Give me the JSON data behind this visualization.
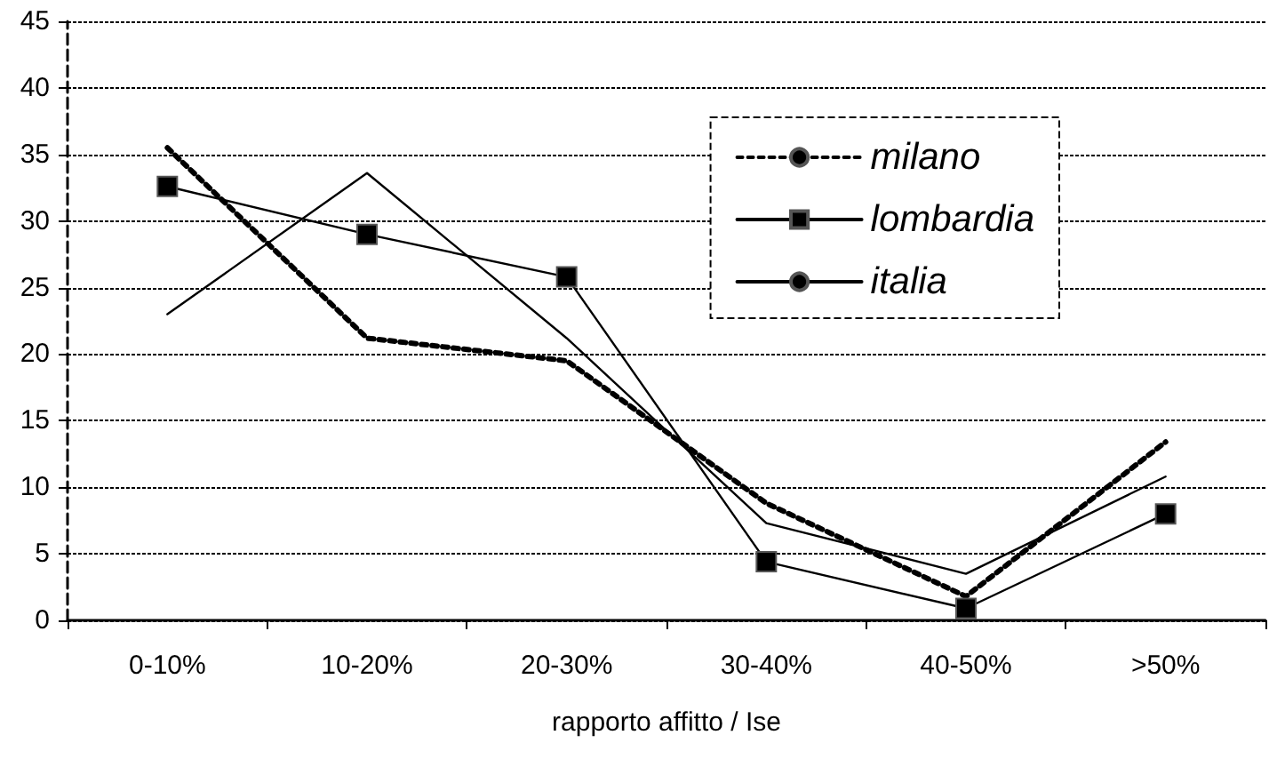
{
  "chart_data": {
    "type": "line",
    "xlabel": "rapporto affitto / Ise",
    "categories": [
      "0-10%",
      "10-20%",
      "20-30%",
      "30-40%",
      "40-50%",
      ">50%"
    ],
    "series": [
      {
        "name": "milano",
        "color": "#000000",
        "line_style": "dashed",
        "marker": "none",
        "values": [
          35.5,
          21.2,
          19.5,
          8.8,
          1.8,
          13.4
        ]
      },
      {
        "name": "lombardia",
        "color": "#000000",
        "line_style": "solid",
        "marker": "square",
        "values": [
          32.6,
          29.0,
          25.8,
          4.4,
          0.9,
          8.0
        ]
      },
      {
        "name": "italia",
        "color": "#000000",
        "line_style": "solid",
        "marker": "none",
        "values": [
          23.0,
          33.6,
          21.2,
          7.3,
          3.5,
          10.8
        ]
      }
    ],
    "ylim": [
      0,
      45
    ],
    "yticks": [
      0,
      5,
      10,
      15,
      20,
      25,
      30,
      35,
      40,
      45
    ],
    "grid": "y",
    "legend": "top right"
  }
}
